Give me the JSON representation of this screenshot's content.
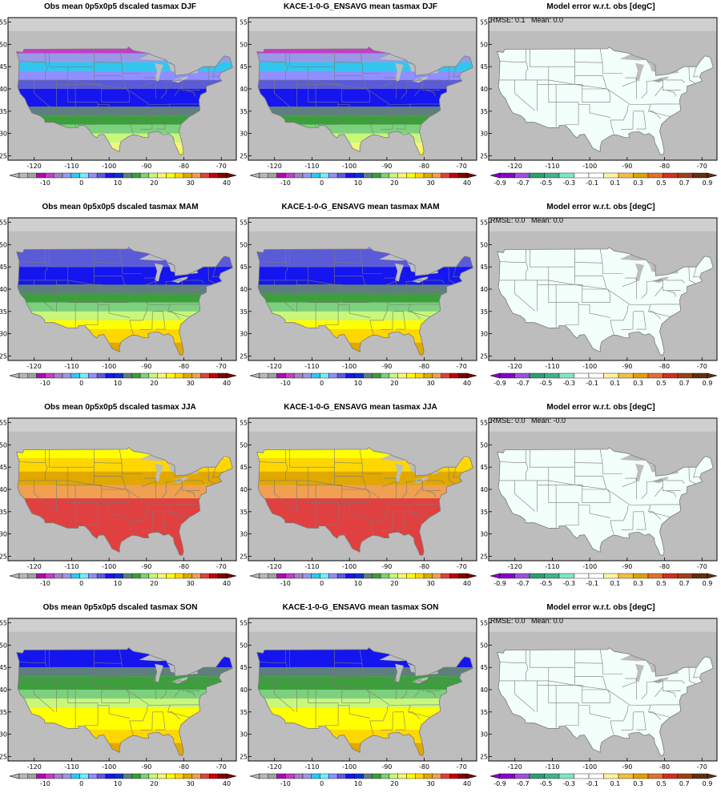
{
  "colors": {
    "ocean": "#bdbdbd",
    "border": "#7a7a7a",
    "frame": "#000000",
    "temp_scale": [
      "#b8b8b8",
      "#a0a0a0",
      "#b00ab0",
      "#c43dc4",
      "#a77fc6",
      "#9999e6",
      "#2fc7f0",
      "#6df0ff",
      "#8f8fff",
      "#5b5bd8",
      "#1515f0",
      "#0a2fd6",
      "#5f7f7f",
      "#3c9f3c",
      "#7dd07d",
      "#c8f77a",
      "#f5f57a",
      "#ffff00",
      "#ffd700",
      "#e1a800",
      "#f0a050",
      "#e04040",
      "#c80000",
      "#800000"
    ],
    "err_scale": [
      "#8800cc",
      "#a050dc",
      "#2e9e73",
      "#3fb58a",
      "#7fe6c4",
      "#ffffff",
      "#ffffff",
      "#fff3a0",
      "#f0c040",
      "#e0a000",
      "#e07030",
      "#d03020",
      "#a04010",
      "#603010"
    ]
  },
  "axes": {
    "lon_ticks": [
      "-120",
      "-110",
      "-100",
      "-90",
      "-80",
      "-70"
    ],
    "lat_ticks": [
      "25",
      "30",
      "35",
      "40",
      "45",
      "50",
      "55"
    ]
  },
  "colorbars": {
    "temp_labels": [
      "-10",
      "0",
      "10",
      "20",
      "30",
      "40"
    ],
    "err_labels": [
      "-0.9",
      "-0.7",
      "-0.5",
      "-0.3",
      "-0.1",
      "0.1",
      "0.3",
      "0.5",
      "0.7",
      "0.9"
    ]
  },
  "rows": [
    {
      "season": "DJF",
      "obs_title": "Obs mean 0p5x0p5 dscaled tasmax DJF",
      "model_title": "KACE-1-0-G_ENSAVG mean tasmax DJF",
      "err_title": "Model error w.r.t. obs [degC]",
      "stats": "RMSE: 0.1   Mean: 0.0",
      "bands": [
        {
          "lat": 52,
          "color": "#b00ab0"
        },
        {
          "lat": 48,
          "color": "#c43dc4"
        },
        {
          "lat": 46,
          "color": "#9999e6"
        },
        {
          "lat": 44,
          "color": "#2fc7f0"
        },
        {
          "lat": 42,
          "color": "#8f8fff"
        },
        {
          "lat": 40,
          "color": "#5b5bd8"
        },
        {
          "lat": 36,
          "color": "#1515f0"
        },
        {
          "lat": 34,
          "color": "#5f7f7f"
        },
        {
          "lat": 32,
          "color": "#3c9f3c"
        },
        {
          "lat": 30,
          "color": "#7dd07d"
        },
        {
          "lat": 28,
          "color": "#c8f77a"
        },
        {
          "lat": 26,
          "color": "#f5f57a"
        },
        {
          "lat": 20,
          "color": "#ffff00"
        }
      ]
    },
    {
      "season": "MAM",
      "obs_title": "Obs mean 0p5x0p5 dscaled tasmax MAM",
      "model_title": "KACE-1-0-G_ENSAVG mean tasmax MAM",
      "err_title": "Model error w.r.t. obs [degC]",
      "stats": "RMSE: 0.0   Mean: 0.0",
      "bands": [
        {
          "lat": 49,
          "color": "#8f8fff"
        },
        {
          "lat": 45,
          "color": "#5b5bd8"
        },
        {
          "lat": 41,
          "color": "#1515f0"
        },
        {
          "lat": 39,
          "color": "#5f7f7f"
        },
        {
          "lat": 37,
          "color": "#3c9f3c"
        },
        {
          "lat": 35,
          "color": "#7dd07d"
        },
        {
          "lat": 33,
          "color": "#c8f77a"
        },
        {
          "lat": 31,
          "color": "#ffff00"
        },
        {
          "lat": 28,
          "color": "#ffd700"
        },
        {
          "lat": 20,
          "color": "#e1a800"
        }
      ]
    },
    {
      "season": "JJA",
      "obs_title": "Obs mean 0p5x0p5 dscaled tasmax JJA",
      "model_title": "KACE-1-0-G_ENSAVG mean tasmax JJA",
      "err_title": "Model error w.r.t. obs [degC]",
      "stats": "RMSE: 0.0   Mean: -0.0",
      "bands": [
        {
          "lat": 50,
          "color": "#c8f77a"
        },
        {
          "lat": 47,
          "color": "#ffff00"
        },
        {
          "lat": 44,
          "color": "#ffd700"
        },
        {
          "lat": 41,
          "color": "#e1a800"
        },
        {
          "lat": 38,
          "color": "#f0a050"
        },
        {
          "lat": 20,
          "color": "#e04040"
        }
      ]
    },
    {
      "season": "SON",
      "obs_title": "Obs mean 0p5x0p5 dscaled tasmax SON",
      "model_title": "KACE-1-0-G_ENSAVG mean tasmax SON",
      "err_title": "Model error w.r.t. obs [degC]",
      "stats": "RMSE: 0.0   Mean: 0.0",
      "bands": [
        {
          "lat": 50,
          "color": "#5b5bd8"
        },
        {
          "lat": 45,
          "color": "#1515f0"
        },
        {
          "lat": 43,
          "color": "#5f7f7f"
        },
        {
          "lat": 40,
          "color": "#3c9f3c"
        },
        {
          "lat": 38,
          "color": "#7dd07d"
        },
        {
          "lat": 36,
          "color": "#c8f77a"
        },
        {
          "lat": 31,
          "color": "#ffff00"
        },
        {
          "lat": 28,
          "color": "#ffd700"
        },
        {
          "lat": 20,
          "color": "#e1a800"
        }
      ]
    }
  ]
}
